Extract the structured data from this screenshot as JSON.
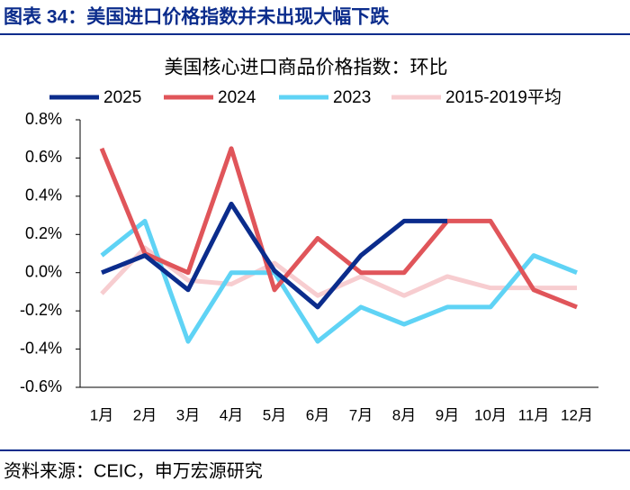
{
  "header": {
    "title": "图表 34：美国进口价格指数并未出现大幅下跌"
  },
  "chart_data": {
    "type": "line",
    "title": "美国核心进口商品价格指数：环比",
    "categories": [
      "1月",
      "2月",
      "3月",
      "4月",
      "5月",
      "6月",
      "7月",
      "8月",
      "9月",
      "10月",
      "11月",
      "12月"
    ],
    "series": [
      {
        "name": "2025",
        "color": "#0b2c8c",
        "values": [
          0.0,
          0.09,
          -0.09,
          0.36,
          0.01,
          -0.18,
          0.09,
          0.27,
          0.27,
          null,
          null,
          null
        ]
      },
      {
        "name": "2024",
        "color": "#e0555a",
        "values": [
          0.65,
          0.1,
          0.0,
          0.65,
          -0.09,
          0.18,
          0.0,
          0.0,
          0.27,
          0.27,
          -0.09,
          -0.18
        ]
      },
      {
        "name": "2023",
        "color": "#5fd3f5",
        "values": [
          0.09,
          0.27,
          -0.36,
          0.0,
          0.0,
          -0.36,
          -0.18,
          -0.27,
          -0.18,
          -0.18,
          0.09,
          0.0
        ]
      },
      {
        "name": "2015-2019平均",
        "color": "#f7cdd0",
        "values": [
          -0.11,
          0.13,
          -0.04,
          -0.06,
          0.05,
          -0.12,
          -0.02,
          -0.12,
          -0.02,
          -0.08,
          -0.08,
          -0.08
        ]
      }
    ],
    "ylim": [
      -0.6,
      0.8
    ],
    "yticks": [
      {
        "value": -0.6,
        "label": "-0.6%"
      },
      {
        "value": -0.4,
        "label": "-0.4%"
      },
      {
        "value": -0.2,
        "label": "-0.2%"
      },
      {
        "value": 0.0,
        "label": "0.0%"
      },
      {
        "value": 0.2,
        "label": "0.2%"
      },
      {
        "value": 0.4,
        "label": "0.4%"
      },
      {
        "value": 0.6,
        "label": "0.6%"
      },
      {
        "value": 0.8,
        "label": "0.8%"
      }
    ],
    "grid": false
  },
  "footer": {
    "source": "资料来源：CEIC，申万宏源研究"
  }
}
